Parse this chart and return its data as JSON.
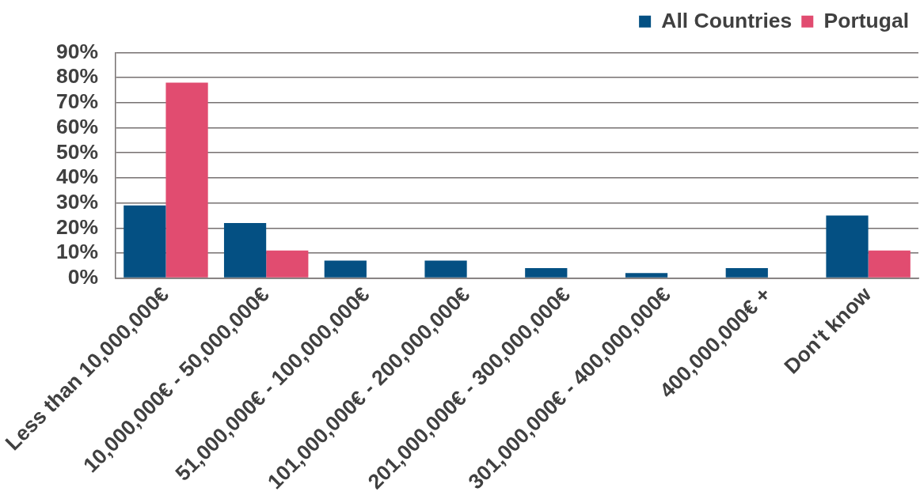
{
  "chart_data": {
    "type": "bar",
    "categories": [
      "Less than 10,000,000€",
      "10,000,000€ - 50,000,000€",
      "51,000,000€ - 100,000,000€",
      "101,000,000€ - 200,000,000€",
      "201,000,000€ - 300,000,000€",
      "301,000,000€ - 400,000,000€",
      "400,000,000€ +",
      "Don't know"
    ],
    "series": [
      {
        "name": "All Countries",
        "color": "#045083",
        "values": [
          29,
          22,
          7,
          7,
          4,
          2,
          4,
          25
        ]
      },
      {
        "name": "Portugal",
        "color": "#e14c70",
        "values": [
          78,
          11,
          0,
          0,
          0,
          0,
          0,
          11
        ]
      }
    ],
    "ylim": [
      0,
      90
    ],
    "yticks": [
      {
        "value": 0,
        "label": "0%"
      },
      {
        "value": 10,
        "label": "10%"
      },
      {
        "value": 20,
        "label": "20%"
      },
      {
        "value": 30,
        "label": "30%"
      },
      {
        "value": 40,
        "label": "40%"
      },
      {
        "value": 50,
        "label": "50%"
      },
      {
        "value": 60,
        "label": "60%"
      },
      {
        "value": 70,
        "label": "70%"
      },
      {
        "value": 80,
        "label": "80%"
      },
      {
        "value": 90,
        "label": "90%"
      }
    ],
    "grid": "y",
    "legend": "top right"
  }
}
